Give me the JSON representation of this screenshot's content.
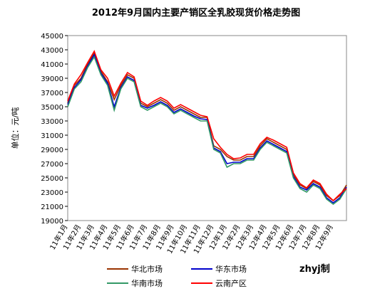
{
  "chart_data": {
    "type": "line",
    "title": "2012年9月国内主要产销区全乳胶现货价格走势图",
    "y_label": "单位：元/吨",
    "annotation": "zhyj制",
    "categories": [
      "11年1月",
      null,
      "11年2月",
      null,
      "11年3月",
      null,
      "11年4月",
      null,
      "11年5月",
      null,
      "11年6月",
      null,
      "11年7月",
      null,
      "11年8月",
      null,
      "11年9月",
      null,
      "11年10月",
      null,
      "11年11月",
      null,
      "11年12月",
      null,
      "12年1月",
      null,
      "12年2月",
      null,
      "12年3月",
      null,
      "12年4月",
      null,
      "12年5月",
      null,
      "12年6月",
      null,
      "12年7月",
      null,
      "12年8月",
      null,
      "12年9月",
      null,
      null
    ],
    "series": [
      {
        "name": "华北市场",
        "color": "#993300",
        "values": [
          35500,
          38000,
          39000,
          41000,
          42500,
          40000,
          38500,
          36000,
          38000,
          39500,
          39000,
          35500,
          35000,
          35500,
          36000,
          35500,
          34500,
          35000,
          34500,
          34000,
          33500,
          33500,
          29500,
          29000,
          28000,
          27500,
          27500,
          28000,
          28000,
          29500,
          30500,
          30000,
          29500,
          29000,
          25500,
          24000,
          23500,
          24500,
          24000,
          22500,
          21800,
          22500,
          24000
        ]
      },
      {
        "name": "华东市场",
        "color": "#0000cc",
        "values": [
          35300,
          37700,
          38800,
          40700,
          42300,
          39700,
          38300,
          35000,
          37700,
          39200,
          38700,
          35200,
          34800,
          35200,
          35700,
          35200,
          34200,
          34700,
          34200,
          33700,
          33300,
          33200,
          29200,
          28700,
          27000,
          27200,
          27200,
          27700,
          27700,
          29200,
          30200,
          29700,
          29200,
          28700,
          25200,
          23700,
          23300,
          24200,
          23700,
          22200,
          21500,
          22200,
          23700
        ]
      },
      {
        "name": "华南市场",
        "color": "#339966",
        "values": [
          35000,
          37500,
          38500,
          40500,
          42000,
          39500,
          38000,
          34500,
          37500,
          39000,
          38500,
          35000,
          34500,
          35000,
          35500,
          35000,
          34000,
          34500,
          34000,
          33500,
          33000,
          33000,
          29000,
          28500,
          26500,
          27000,
          27000,
          27500,
          27500,
          29000,
          30000,
          29500,
          29000,
          28500,
          25000,
          23500,
          23000,
          24000,
          23500,
          22000,
          21300,
          22000,
          23500
        ]
      },
      {
        "name": "云南产区",
        "color": "#ff0000",
        "values": [
          35800,
          38200,
          39500,
          41200,
          42800,
          40200,
          39000,
          36500,
          38300,
          39800,
          39200,
          35800,
          35200,
          35800,
          36300,
          35800,
          34800,
          35300,
          34800,
          34300,
          33800,
          33600,
          30500,
          29300,
          28300,
          27700,
          27800,
          28300,
          28300,
          29800,
          30700,
          30300,
          29800,
          29300,
          25700,
          24200,
          23600,
          24700,
          24200,
          22700,
          21800,
          22700,
          23500
        ]
      }
    ],
    "ylim": [
      19000,
      45000
    ],
    "yticks": [
      19000,
      21000,
      23000,
      25000,
      27000,
      29000,
      31000,
      33000,
      35000,
      37000,
      39000,
      41000,
      43000,
      45000
    ],
    "legend": "bottom"
  }
}
